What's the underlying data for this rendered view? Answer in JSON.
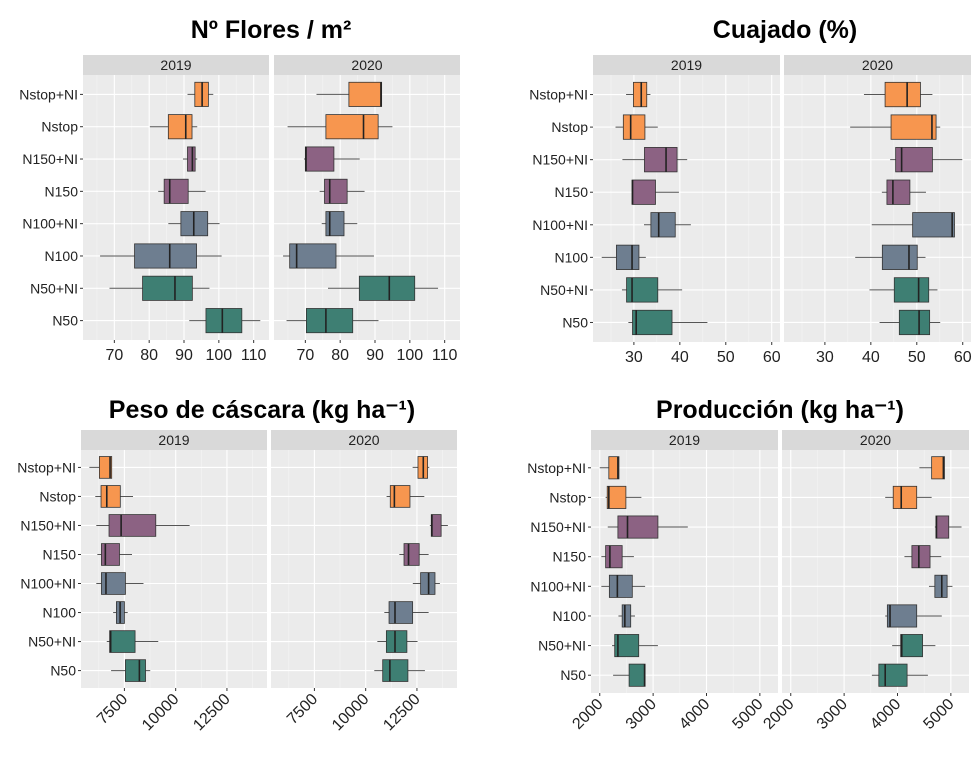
{
  "chart_data": [
    {
      "type": "boxplot",
      "orientation": "horizontal",
      "title": "Nº Flores / m²",
      "facets": [
        "2019",
        "2020"
      ],
      "categories": [
        "Nstop+NI",
        "Nstop",
        "N150+NI",
        "N150",
        "N100+NI",
        "N100",
        "N50+NI",
        "N50"
      ],
      "category_colors": [
        "#F7964F",
        "#F7964F",
        "#8C6283",
        "#8C6283",
        "#6E7E90",
        "#6E7E90",
        "#3E7F73",
        "#3E7F73"
      ],
      "stats_order": [
        "min",
        "q1",
        "median",
        "q3",
        "max"
      ],
      "xlim": [
        61,
        114.4
      ],
      "xticks": [
        "70",
        "80",
        "90",
        "100",
        "110"
      ],
      "tick_rotation": 0,
      "grid": true,
      "values": {
        "2019": [
          [
            91.0,
            93.1,
            95.2,
            97.0,
            98.4
          ],
          [
            80.2,
            85.5,
            90.5,
            92.3,
            93.8
          ],
          [
            89.7,
            91.0,
            92.4,
            93.2,
            93.8
          ],
          [
            82.6,
            84.3,
            85.9,
            91.2,
            96.2
          ],
          [
            85.5,
            89.1,
            92.8,
            96.8,
            100.2
          ],
          [
            65.9,
            75.8,
            85.9,
            93.6,
            100.8
          ],
          [
            68.6,
            78.1,
            87.4,
            92.4,
            97.3
          ],
          [
            91.5,
            96.3,
            101.0,
            106.6,
            111.9
          ]
        ],
        "2020": [
          [
            73.2,
            82.5,
            91.7,
            91.9,
            91.9
          ],
          [
            64.9,
            75.9,
            86.7,
            90.9,
            95.0
          ],
          [
            69.6,
            70.0,
            70.2,
            78.2,
            85.6
          ],
          [
            74.1,
            75.5,
            77.0,
            82.0,
            87.0
          ],
          [
            74.7,
            75.9,
            77.0,
            81.1,
            84.9
          ],
          [
            63.6,
            65.5,
            67.5,
            78.8,
            89.7
          ],
          [
            76.5,
            85.5,
            94.1,
            101.4,
            108.1
          ],
          [
            64.6,
            70.3,
            75.9,
            83.6,
            91.0
          ]
        ]
      }
    },
    {
      "type": "boxplot",
      "orientation": "horizontal",
      "title": "Cuajado (%)",
      "facets": [
        "2019",
        "2020"
      ],
      "categories": [
        "Nstop+NI",
        "Nstop",
        "N150+NI",
        "N150",
        "N100+NI",
        "N100",
        "N50+NI",
        "N50"
      ],
      "category_colors": [
        "#F7964F",
        "#F7964F",
        "#8C6283",
        "#8C6283",
        "#6E7E90",
        "#6E7E90",
        "#3E7F73",
        "#3E7F73"
      ],
      "stats_order": [
        "min",
        "q1",
        "median",
        "q3",
        "max"
      ],
      "xlim": [
        21.1,
        61.8
      ],
      "xticks": [
        "30",
        "40",
        "50",
        "60"
      ],
      "tick_rotation": 0,
      "grid": true,
      "values": {
        "2019": [
          [
            28.3,
            29.9,
            31.6,
            32.8,
            33.6
          ],
          [
            26.0,
            27.7,
            29.3,
            32.4,
            35.2
          ],
          [
            27.5,
            32.3,
            37.0,
            39.4,
            41.6
          ],
          [
            29.6,
            29.6,
            29.7,
            34.7,
            39.8
          ],
          [
            32.2,
            33.7,
            35.4,
            39.0,
            42.4
          ],
          [
            23.0,
            26.2,
            29.6,
            31.1,
            32.6
          ],
          [
            27.4,
            28.4,
            29.6,
            35.2,
            40.5
          ],
          [
            28.8,
            29.7,
            30.5,
            38.3,
            46.0
          ]
        ],
        "2020": [
          [
            38.5,
            43.1,
            47.9,
            50.8,
            53.4
          ],
          [
            35.5,
            44.4,
            53.3,
            54.2,
            55.1
          ],
          [
            44.2,
            45.4,
            46.7,
            53.4,
            59.9
          ],
          [
            42.4,
            43.5,
            44.8,
            48.5,
            52.0
          ],
          [
            40.2,
            49.1,
            57.7,
            58.2,
            58.3
          ],
          [
            36.6,
            42.5,
            48.3,
            50.1,
            51.9
          ],
          [
            39.7,
            45.1,
            50.4,
            52.6,
            54.5
          ],
          [
            41.9,
            46.2,
            50.5,
            52.8,
            55.1
          ]
        ]
      }
    },
    {
      "type": "boxplot",
      "orientation": "horizontal",
      "title": "Peso de cáscara (kg ha⁻¹)",
      "facets": [
        "2019",
        "2020"
      ],
      "categories": [
        "Nstop+NI",
        "Nstop",
        "N150+NI",
        "N150",
        "N100+NI",
        "N100",
        "N50+NI",
        "N50"
      ],
      "category_colors": [
        "#F7964F",
        "#F7964F",
        "#8C6283",
        "#8C6283",
        "#6E7E90",
        "#6E7E90",
        "#3E7F73",
        "#3E7F73"
      ],
      "stats_order": [
        "min",
        "q1",
        "median",
        "q3",
        "max"
      ],
      "xlim": [
        5383,
        14454
      ],
      "xticks": [
        "7500",
        "10000",
        "12500"
      ],
      "tick_rotation": -45,
      "grid": true,
      "values": {
        "2019": [
          [
            5790,
            6280,
            6800,
            6880,
            6880
          ],
          [
            6080,
            6360,
            6640,
            7300,
            7920
          ],
          [
            6130,
            6750,
            7340,
            9030,
            10680
          ],
          [
            6180,
            6380,
            6570,
            7260,
            7870
          ],
          [
            6130,
            6380,
            6600,
            7550,
            8430
          ],
          [
            6950,
            7110,
            7290,
            7500,
            7660
          ],
          [
            6640,
            6780,
            6830,
            8020,
            9150
          ],
          [
            6850,
            7550,
            8230,
            8530,
            8760
          ]
        ],
        "2020": [
          [
            12290,
            12550,
            12810,
            13020,
            13100
          ],
          [
            11020,
            11200,
            11400,
            12160,
            12860
          ],
          [
            13130,
            13200,
            13230,
            13680,
            14010
          ],
          [
            11640,
            11870,
            12090,
            12610,
            13070
          ],
          [
            12300,
            12680,
            13070,
            13380,
            13620
          ],
          [
            10910,
            11140,
            11430,
            12290,
            13070
          ],
          [
            10570,
            11010,
            11430,
            12010,
            12530
          ],
          [
            10420,
            10830,
            11180,
            12060,
            12890
          ]
        ]
      }
    },
    {
      "type": "boxplot",
      "orientation": "horizontal",
      "title": "Producción (kg ha⁻¹)",
      "facets": [
        "2019",
        "2020"
      ],
      "categories": [
        "Nstop+NI",
        "Nstop",
        "N150+NI",
        "N150",
        "N100+NI",
        "N100",
        "N50+NI",
        "N50"
      ],
      "category_colors": [
        "#F7964F",
        "#F7964F",
        "#8C6283",
        "#8C6283",
        "#6E7E90",
        "#6E7E90",
        "#3E7F73",
        "#3E7F73"
      ],
      "stats_order": [
        "min",
        "q1",
        "median",
        "q3",
        "max"
      ],
      "xlim": [
        1836,
        5340
      ],
      "xticks": [
        "2000",
        "3000",
        "4000",
        "5000"
      ],
      "tick_rotation": -45,
      "grid": true,
      "values": {
        "2019": [
          [
            2000,
            2170,
            2340,
            2360,
            2360
          ],
          [
            2110,
            2140,
            2170,
            2490,
            2780
          ],
          [
            2150,
            2340,
            2520,
            3090,
            3650
          ],
          [
            2030,
            2110,
            2190,
            2420,
            2640
          ],
          [
            2030,
            2180,
            2330,
            2610,
            2850
          ],
          [
            2350,
            2420,
            2470,
            2580,
            2660
          ],
          [
            2230,
            2280,
            2340,
            2730,
            3090
          ],
          [
            2250,
            2550,
            2840,
            2850,
            2850
          ]
        ],
        "2020": [
          [
            4410,
            4640,
            4860,
            4880,
            4880
          ],
          [
            3770,
            3920,
            4070,
            4360,
            4640
          ],
          [
            4700,
            4720,
            4730,
            4960,
            5200
          ],
          [
            4130,
            4270,
            4400,
            4610,
            4820
          ],
          [
            4590,
            4700,
            4830,
            4930,
            5030
          ],
          [
            3770,
            3810,
            3860,
            4360,
            4830
          ],
          [
            3900,
            4060,
            4080,
            4470,
            4710
          ],
          [
            3520,
            3650,
            3770,
            4180,
            4570
          ]
        ]
      }
    }
  ]
}
